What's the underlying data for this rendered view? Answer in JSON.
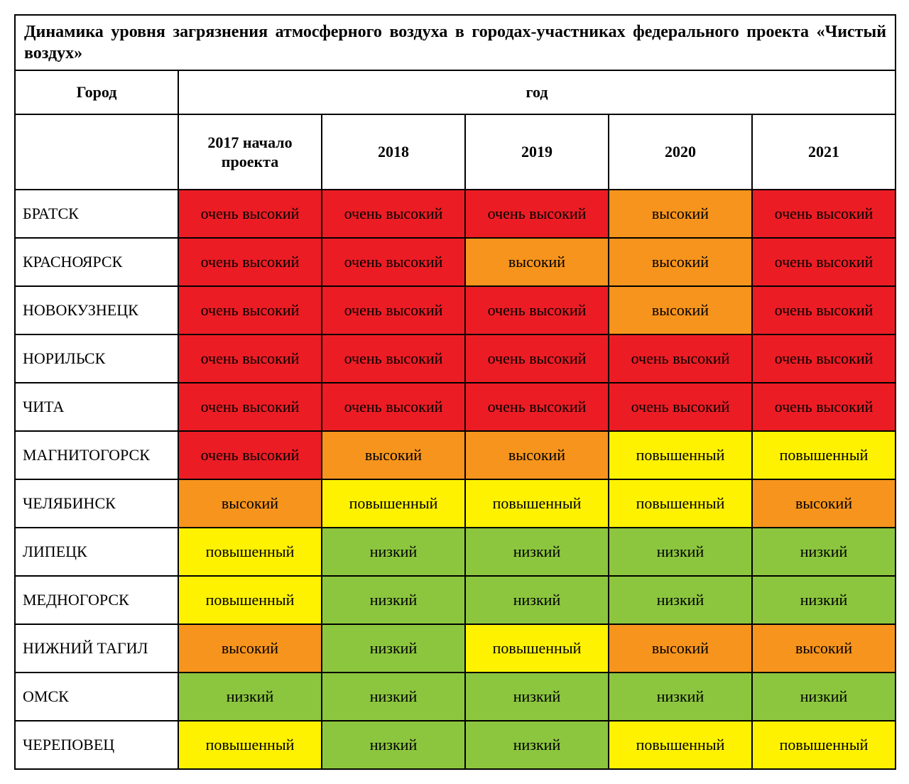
{
  "title": "Динамика уровня загрязнения атмосферного воздуха в городах-участниках федерального проекта «Чистый воздух»",
  "header": {
    "city": "Город",
    "year_group": "год",
    "years": [
      "2017 начало проекта",
      "2018",
      "2019",
      "2020",
      "2021"
    ]
  },
  "levels": {
    "very_high": {
      "label": "очень высокий",
      "bg": "#ec1c24",
      "fg": "#000000"
    },
    "high": {
      "label": "высокий",
      "bg": "#f7941d",
      "fg": "#000000"
    },
    "elevated": {
      "label": "повышенный",
      "bg": "#fff200",
      "fg": "#000000"
    },
    "low": {
      "label": "низкий",
      "bg": "#8cc63f",
      "fg": "#000000"
    }
  },
  "rows": [
    {
      "city": "БРАТСК",
      "cells": [
        "very_high",
        "very_high",
        "very_high",
        "high",
        "very_high"
      ]
    },
    {
      "city": "КРАСНОЯРСК",
      "cells": [
        "very_high",
        "very_high",
        "high",
        "high",
        "very_high"
      ]
    },
    {
      "city": "НОВОКУЗНЕЦК",
      "cells": [
        "very_high",
        "very_high",
        "very_high",
        "high",
        "very_high"
      ]
    },
    {
      "city": "НОРИЛЬСК",
      "cells": [
        "very_high",
        "very_high",
        "very_high",
        "very_high",
        "very_high"
      ]
    },
    {
      "city": "ЧИТА",
      "cells": [
        "very_high",
        "very_high",
        "very_high",
        "very_high",
        "very_high"
      ]
    },
    {
      "city": "МАГНИТОГОРСК",
      "cells": [
        "very_high",
        "high",
        "high",
        "elevated",
        "elevated"
      ]
    },
    {
      "city": "ЧЕЛЯБИНСК",
      "cells": [
        "high",
        "elevated",
        "elevated",
        "elevated",
        "high"
      ]
    },
    {
      "city": "ЛИПЕЦК",
      "cells": [
        "elevated",
        "low",
        "low",
        "low",
        "low"
      ]
    },
    {
      "city": "МЕДНОГОРСК",
      "cells": [
        "elevated",
        "low",
        "low",
        "low",
        "low"
      ]
    },
    {
      "city": "НИЖНИЙ ТАГИЛ",
      "cells": [
        "high",
        "low",
        "elevated",
        "high",
        "high"
      ]
    },
    {
      "city": "ОМСК",
      "cells": [
        "low",
        "low",
        "low",
        "low",
        "low"
      ]
    },
    {
      "city": "ЧЕРЕПОВЕЦ",
      "cells": [
        "elevated",
        "low",
        "low",
        "elevated",
        "elevated"
      ]
    }
  ],
  "style": {
    "border_color": "#000000",
    "background": "#ffffff",
    "title_fontsize": 24,
    "cell_fontsize": 22,
    "font_family": "Times New Roman"
  }
}
